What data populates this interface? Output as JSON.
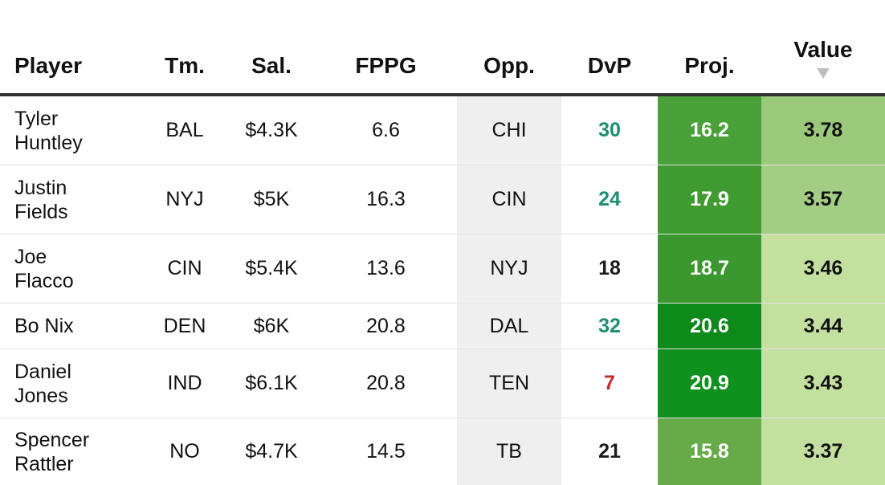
{
  "headers": {
    "player": "Player",
    "team": "Tm.",
    "salary": "Sal.",
    "fppg": "FPPG",
    "opp": "Opp.",
    "dvp": "DvP",
    "proj": "Proj.",
    "value": "Value"
  },
  "sort": {
    "column": "value",
    "direction": "descending",
    "icon": "sort-desc-arrow"
  },
  "colors": {
    "dvp_good": "#1a9070",
    "dvp_neutral": "#1c1c1c",
    "dvp_bad": "#c62828",
    "proj_15_8": "#67ab49",
    "proj_16_2": "#4aa13a",
    "proj_17_9": "#3f9a2f",
    "proj_18_7": "#3a982e",
    "proj_20_6": "#0d8a1a",
    "proj_20_9": "#10901d",
    "value_high": "#9ac97a",
    "value_low": "#c3e09f"
  },
  "rows": [
    {
      "first": "Tyler",
      "last": "Huntley",
      "team": "BAL",
      "salary": "$4.3K",
      "fppg": "6.6",
      "opp": "CHI",
      "dvp": "30",
      "dvp_color": "#1a9070",
      "proj": "16.2",
      "proj_bg": "#4aa13a",
      "value": "3.78",
      "value_bg": "#9ac97a"
    },
    {
      "first": "Justin",
      "last": "Fields",
      "team": "NYJ",
      "salary": "$5K",
      "fppg": "16.3",
      "opp": "CIN",
      "dvp": "24",
      "dvp_color": "#1a9070",
      "proj": "17.9",
      "proj_bg": "#3f9a2f",
      "value": "3.57",
      "value_bg": "#a2cd82"
    },
    {
      "first": "Joe",
      "last": "Flacco",
      "team": "CIN",
      "salary": "$5.4K",
      "fppg": "13.6",
      "opp": "NYJ",
      "dvp": "18",
      "dvp_color": "#1c1c1c",
      "proj": "18.7",
      "proj_bg": "#3a982e",
      "value": "3.46",
      "value_bg": "#c3e09f"
    },
    {
      "first": "Bo Nix",
      "last": "",
      "team": "DEN",
      "salary": "$6K",
      "fppg": "20.8",
      "opp": "DAL",
      "dvp": "32",
      "dvp_color": "#1a9070",
      "proj": "20.6",
      "proj_bg": "#0d8a1a",
      "value": "3.44",
      "value_bg": "#c3e09f"
    },
    {
      "first": "Daniel",
      "last": "Jones",
      "team": "IND",
      "salary": "$6.1K",
      "fppg": "20.8",
      "opp": "TEN",
      "dvp": "7",
      "dvp_color": "#c62828",
      "proj": "20.9",
      "proj_bg": "#10901d",
      "value": "3.43",
      "value_bg": "#c3e09f"
    },
    {
      "first": "Spencer",
      "last": "Rattler",
      "team": "NO",
      "salary": "$4.7K",
      "fppg": "14.5",
      "opp": "TB",
      "dvp": "21",
      "dvp_color": "#1c1c1c",
      "proj": "15.8",
      "proj_bg": "#67ab49",
      "value": "3.37",
      "value_bg": "#c3e09f"
    }
  ]
}
